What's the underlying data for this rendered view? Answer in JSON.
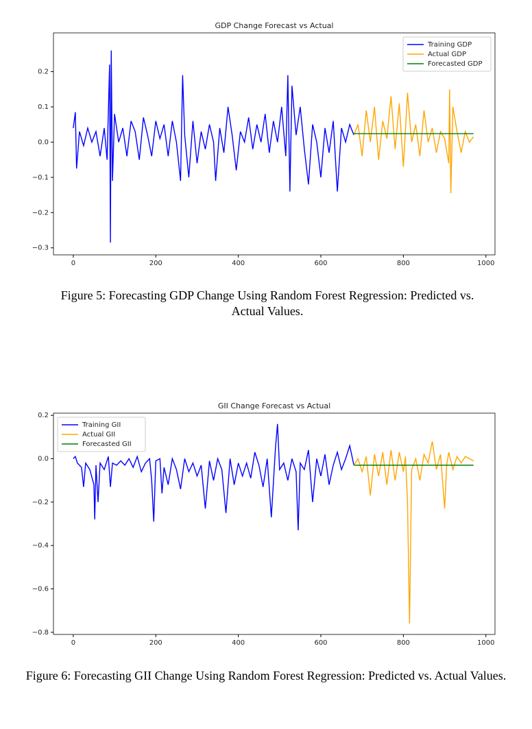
{
  "chart_data": [
    {
      "type": "line",
      "title": "GDP Change Forecast vs Actual",
      "legend": "upper right",
      "grid": false,
      "xlim": [
        -48,
        1022
      ],
      "ylim": [
        -0.32,
        0.31
      ],
      "xticks": [
        0,
        200,
        400,
        600,
        800,
        1000
      ],
      "yticks": [
        {
          "value": -0.3,
          "label": "−0.3"
        },
        {
          "value": -0.2,
          "label": "−0.2"
        },
        {
          "value": -0.1,
          "label": "−0.1"
        },
        {
          "value": 0,
          "label": "0.0"
        },
        0.1,
        0.2
      ],
      "series": [
        {
          "name": "Training GDP",
          "color": "#0000ff",
          "x": [
            0,
            5,
            8,
            15,
            25,
            35,
            45,
            55,
            65,
            75,
            82,
            88,
            90,
            92,
            95,
            100,
            110,
            120,
            130,
            140,
            150,
            160,
            170,
            180,
            190,
            200,
            210,
            220,
            230,
            240,
            250,
            260,
            265,
            270,
            280,
            290,
            300,
            310,
            320,
            330,
            340,
            345,
            355,
            365,
            375,
            385,
            395,
            405,
            415,
            425,
            435,
            445,
            455,
            465,
            475,
            485,
            495,
            505,
            515,
            520,
            525,
            530,
            540,
            550,
            560,
            570,
            580,
            590,
            600,
            610,
            620,
            630,
            640,
            650,
            660,
            670,
            680
          ],
          "values": [
            0.04,
            0.085,
            -0.075,
            0.03,
            -0.01,
            0.04,
            0.0,
            0.03,
            -0.04,
            0.04,
            -0.05,
            0.22,
            -0.285,
            0.26,
            -0.11,
            0.08,
            0.0,
            0.04,
            -0.04,
            0.06,
            0.03,
            -0.05,
            0.07,
            0.02,
            -0.04,
            0.06,
            0.01,
            0.05,
            -0.04,
            0.06,
            0.0,
            -0.11,
            0.19,
            0.02,
            -0.1,
            0.06,
            -0.06,
            0.03,
            -0.02,
            0.05,
            0.0,
            -0.11,
            0.04,
            -0.03,
            0.1,
            0.02,
            -0.08,
            0.03,
            0.0,
            0.07,
            -0.02,
            0.05,
            0.0,
            0.08,
            -0.03,
            0.06,
            0.0,
            0.1,
            -0.04,
            0.19,
            -0.14,
            0.16,
            0.02,
            0.1,
            -0.02,
            -0.12,
            0.05,
            0.0,
            -0.1,
            0.04,
            -0.03,
            0.06,
            -0.14,
            0.04,
            0.0,
            0.05,
            0.02
          ]
        },
        {
          "name": "Actual GDP",
          "color": "#ffa500",
          "x": [
            680,
            690,
            700,
            710,
            720,
            730,
            740,
            750,
            760,
            770,
            780,
            790,
            800,
            810,
            820,
            830,
            840,
            850,
            860,
            870,
            880,
            890,
            900,
            910,
            912,
            915,
            920,
            930,
            940,
            950,
            960,
            970
          ],
          "values": [
            0.02,
            0.05,
            -0.04,
            0.09,
            0.0,
            0.1,
            -0.05,
            0.06,
            0.01,
            0.13,
            -0.02,
            0.11,
            -0.07,
            0.14,
            0.0,
            0.05,
            -0.04,
            0.09,
            0.0,
            0.04,
            -0.03,
            0.03,
            0.01,
            -0.06,
            0.15,
            -0.145,
            0.1,
            0.03,
            -0.03,
            0.03,
            0.0,
            0.015
          ]
        },
        {
          "name": "Forecasted GDP",
          "color": "#008000",
          "x": [
            680,
            970
          ],
          "values": [
            0.024,
            0.024
          ]
        }
      ]
    },
    {
      "type": "line",
      "title": "GII Change Forecast vs Actual",
      "legend": "upper left",
      "grid": false,
      "xlim": [
        -48,
        1022
      ],
      "ylim": [
        -0.81,
        0.21
      ],
      "xticks": [
        0,
        200,
        400,
        600,
        800,
        1000
      ],
      "yticks": [
        {
          "value": -0.8,
          "label": "−0.8"
        },
        {
          "value": -0.6,
          "label": "−0.6"
        },
        {
          "value": -0.4,
          "label": "−0.4"
        },
        {
          "value": -0.2,
          "label": "−0.2"
        },
        {
          "value": 0,
          "label": "0.0"
        },
        0.2
      ],
      "series": [
        {
          "name": "Training GII",
          "color": "#0000ff",
          "x": [
            0,
            5,
            10,
            20,
            25,
            30,
            40,
            50,
            52,
            55,
            60,
            65,
            75,
            85,
            90,
            95,
            105,
            115,
            125,
            135,
            145,
            155,
            165,
            175,
            185,
            190,
            195,
            200,
            210,
            215,
            220,
            230,
            240,
            250,
            260,
            270,
            280,
            290,
            300,
            310,
            320,
            330,
            340,
            350,
            360,
            370,
            380,
            390,
            400,
            410,
            420,
            430,
            440,
            450,
            460,
            470,
            480,
            490,
            495,
            500,
            510,
            520,
            530,
            540,
            545,
            550,
            560,
            570,
            580,
            590,
            600,
            610,
            620,
            630,
            640,
            650,
            660,
            670,
            680
          ],
          "values": [
            0.0,
            0.01,
            -0.02,
            -0.04,
            -0.13,
            -0.02,
            -0.05,
            -0.12,
            -0.28,
            -0.03,
            -0.2,
            -0.02,
            -0.05,
            0.01,
            -0.13,
            -0.02,
            -0.03,
            -0.01,
            -0.03,
            0.0,
            -0.04,
            0.01,
            -0.06,
            -0.02,
            0.0,
            -0.1,
            -0.29,
            -0.01,
            0.0,
            -0.16,
            -0.04,
            -0.12,
            0.0,
            -0.05,
            -0.14,
            0.0,
            -0.06,
            -0.02,
            -0.08,
            -0.03,
            -0.23,
            -0.01,
            -0.1,
            0.0,
            -0.05,
            -0.25,
            0.0,
            -0.12,
            -0.02,
            -0.08,
            -0.02,
            -0.09,
            0.03,
            -0.03,
            -0.13,
            0.0,
            -0.27,
            0.05,
            0.16,
            -0.05,
            -0.02,
            -0.1,
            0.0,
            -0.06,
            -0.33,
            -0.02,
            -0.05,
            0.04,
            -0.2,
            0.0,
            -0.08,
            0.02,
            -0.12,
            -0.03,
            0.03,
            -0.05,
            0.0,
            0.06,
            -0.03
          ]
        },
        {
          "name": "Actual GII",
          "color": "#ffa500",
          "x": [
            680,
            690,
            700,
            710,
            720,
            730,
            740,
            750,
            760,
            770,
            780,
            790,
            800,
            805,
            810,
            815,
            820,
            830,
            840,
            850,
            860,
            870,
            880,
            890,
            900,
            905,
            910,
            920,
            930,
            940,
            950,
            960,
            970
          ],
          "values": [
            -0.03,
            0.0,
            -0.06,
            0.01,
            -0.17,
            0.02,
            -0.08,
            0.03,
            -0.12,
            0.04,
            -0.1,
            0.03,
            -0.06,
            0.01,
            -0.2,
            -0.76,
            -0.05,
            0.0,
            -0.1,
            0.02,
            -0.02,
            0.08,
            -0.05,
            0.02,
            -0.23,
            -0.03,
            0.03,
            -0.05,
            0.01,
            -0.02,
            0.01,
            0.0,
            -0.01
          ]
        },
        {
          "name": "Forecasted GII",
          "color": "#008000",
          "x": [
            680,
            970
          ],
          "values": [
            -0.03,
            -0.03
          ]
        }
      ]
    }
  ],
  "captions": [
    "Figure 5: Forecasting GDP Change Using Random Forest Regression: Predicted vs. Actual Values.",
    "Figure 6: Forecasting GII Change Using Random Forest Regression: Predicted vs. Actual Values."
  ]
}
